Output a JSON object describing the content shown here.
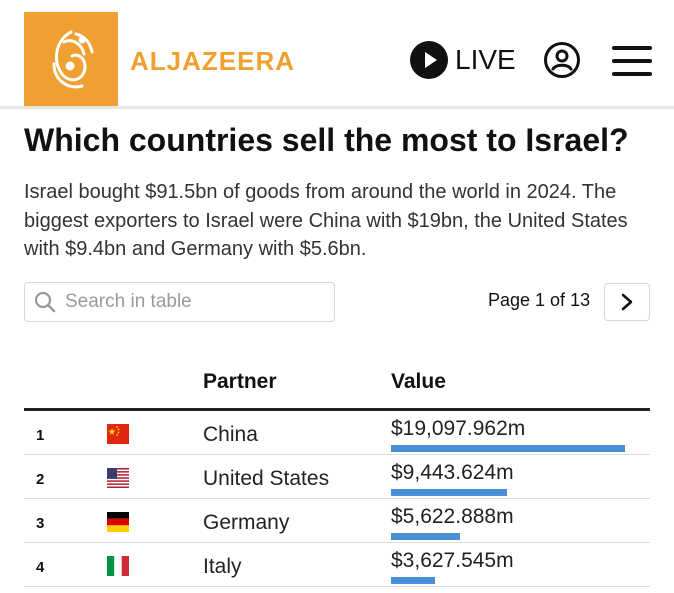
{
  "header": {
    "brand": "ALJAZEERA",
    "live_label": "LIVE",
    "colors": {
      "brand_orange": "#f0a030",
      "bar_blue": "#4a90d9"
    },
    "icons": [
      "aljazeera-logo-icon",
      "play-icon",
      "account-icon",
      "hamburger-menu-icon"
    ]
  },
  "article": {
    "title": "Which countries sell the most to Israel?",
    "description": "Israel bought $91.5bn of goods from around the world in 2024. The biggest exporters to Israel were China with $19bn, the United States with $9.4bn and Germany with $5.6bn."
  },
  "table": {
    "search_placeholder": "Search in table",
    "page_label": "Page 1 of 13",
    "columns": {
      "partner": "Partner",
      "value": "Value"
    },
    "rows": [
      {
        "rank": "1",
        "flag": "china-flag-icon",
        "partner": "China",
        "value": "$19,097.962m",
        "value_num": 19097.962
      },
      {
        "rank": "2",
        "flag": "us-flag-icon",
        "partner": "United States",
        "value": "$9,443.624m",
        "value_num": 9443.624
      },
      {
        "rank": "3",
        "flag": "germany-flag-icon",
        "partner": "Germany",
        "value": "$5,622.888m",
        "value_num": 5622.888
      },
      {
        "rank": "4",
        "flag": "italy-flag-icon",
        "partner": "Italy",
        "value": "$3,627.545m",
        "value_num": 3627.545
      }
    ]
  }
}
